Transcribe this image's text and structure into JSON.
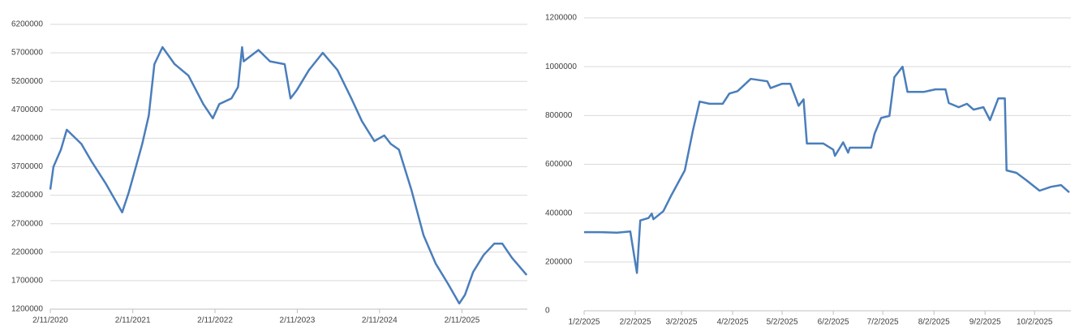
{
  "chart_data": [
    {
      "type": "line",
      "color": "#4a7ebb",
      "x": [
        "2/11/2020",
        "2/25/2020",
        "3/29/2020",
        "4/24/2020",
        "6/28/2020",
        "8/11/2020",
        "10/15/2020",
        "12/26/2020",
        "1/24/2021",
        "2/18/2021",
        "3/25/2021",
        "4/23/2021",
        "5/18/2021",
        "6/23/2021",
        "8/16/2021",
        "10/16/2021",
        "12/21/2021",
        "2/1/2022",
        "3/2/2022",
        "4/25/2022",
        "5/24/2022",
        "6/11/2022",
        "6/18/2022",
        "8/23/2022",
        "10/13/2022",
        "12/17/2022",
        "1/12/2023",
        "2/10/2023",
        "4/4/2023",
        "6/4/2023",
        "8/8/2023",
        "10/9/2023",
        "11/25/2023",
        "1/19/2024",
        "3/3/2024",
        "4/1/2024",
        "5/7/2024",
        "7/1/2024",
        "8/24/2024",
        "10/17/2024",
        "12/10/2024",
        "1/30/2025",
        "2/24/2025",
        "4/1/2025",
        "5/18/2025",
        "7/4/2025",
        "8/9/2025",
        "9/21/2025",
        "11/25/2025"
      ],
      "values": [
        3300000,
        3700000,
        4000000,
        4350000,
        4100000,
        3800000,
        3400000,
        2900000,
        3250000,
        3600000,
        4100000,
        4600000,
        5500000,
        5800000,
        5500000,
        5300000,
        4800000,
        4550000,
        4800000,
        4900000,
        5100000,
        5800000,
        5550000,
        5750000,
        5550000,
        5500000,
        4900000,
        5050000,
        5400000,
        5700000,
        5400000,
        4900000,
        4500000,
        4150000,
        4250000,
        4100000,
        4000000,
        3300000,
        2500000,
        2000000,
        1650000,
        1300000,
        1450000,
        1850000,
        2150000,
        2350000,
        2350000,
        2100000,
        1800000
      ],
      "xlim": [
        "2/11/2020",
        "11/28/2025"
      ],
      "xticks": [
        "2/11/2020",
        "2/11/2021",
        "2/11/2022",
        "2/11/2023",
        "2/11/2024",
        "2/11/2025"
      ],
      "ylim": [
        1200000,
        6200000
      ],
      "yticks": [
        1200000,
        1700000,
        2200000,
        2700000,
        3200000,
        3700000,
        4200000,
        4700000,
        5200000,
        5700000,
        6200000
      ],
      "grid": true
    },
    {
      "type": "line",
      "color": "#4a7ebb",
      "x": [
        "1/2/2025",
        "1/12/2025",
        "1/22/2025",
        "1/30/2025",
        "2/3/2025",
        "2/5/2025",
        "2/10/2025",
        "2/12/2025",
        "2/13/2025",
        "2/19/2025",
        "2/24/2025",
        "3/4/2025",
        "3/9/2025",
        "3/13/2025",
        "3/19/2025",
        "3/27/2025",
        "3/31/2025",
        "4/5/2025",
        "4/13/2025",
        "4/23/2025",
        "4/25/2025",
        "5/2/2025",
        "5/7/2025",
        "5/12/2025",
        "5/15/2025",
        "5/17/2025",
        "5/27/2025",
        "6/2/2025",
        "6/3/2025",
        "6/8/2025",
        "6/11/2025",
        "6/12/2025",
        "6/25/2025",
        "6/27/2025",
        "7/1/2025",
        "7/6/2025",
        "7/9/2025",
        "7/14/2025",
        "7/17/2025",
        "7/27/2025",
        "8/3/2025",
        "8/9/2025",
        "8/11/2025",
        "8/17/2025",
        "8/22/2025",
        "8/26/2025",
        "9/1/2025",
        "9/5/2025",
        "9/10/2025",
        "9/14/2025",
        "9/15/2025",
        "9/21/2025",
        "9/27/2025",
        "10/5/2025",
        "10/12/2025",
        "10/18/2025",
        "10/23/2025"
      ],
      "values": [
        322000,
        322000,
        320000,
        325000,
        155000,
        370000,
        380000,
        398000,
        375000,
        408000,
        475000,
        575000,
        740000,
        857000,
        848000,
        848000,
        890000,
        900000,
        950000,
        940000,
        912000,
        930000,
        930000,
        840000,
        866000,
        685000,
        685000,
        660000,
        635000,
        690000,
        648000,
        668000,
        668000,
        725000,
        790000,
        798000,
        957000,
        1000000,
        897000,
        897000,
        907000,
        907000,
        851000,
        834000,
        848000,
        824000,
        834000,
        781000,
        870000,
        870000,
        575000,
        565000,
        535000,
        492000,
        508000,
        515000,
        485000
      ],
      "xlim": [
        "1/2/2025",
        "10/24/2025"
      ],
      "xticks": [
        "1/2/2025",
        "2/2/2025",
        "3/2/2025",
        "4/2/2025",
        "5/2/2025",
        "6/2/2025",
        "7/2/2025",
        "8/2/2025",
        "9/2/2025",
        "10/2/2025"
      ],
      "ylim": [
        0,
        1200000
      ],
      "yticks": [
        0,
        200000,
        400000,
        600000,
        800000,
        1000000,
        1200000
      ],
      "grid": true
    }
  ]
}
